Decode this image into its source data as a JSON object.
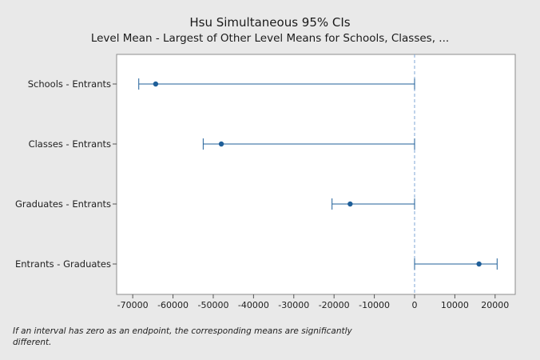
{
  "chart_data": {
    "type": "interval",
    "title": "Hsu Simultaneous 95% CIs",
    "subtitle": "Level Mean - Largest of Other Level Means for Schools, Classes, ...",
    "categories": [
      "Schools - Entrants",
      "Classes - Entrants",
      "Graduates - Entrants",
      "Entrants - Graduates"
    ],
    "intervals": [
      {
        "label": "Schools - Entrants",
        "lower": -68500,
        "estimate": -64300,
        "upper": 0
      },
      {
        "label": "Classes - Entrants",
        "lower": -52500,
        "estimate": -48000,
        "upper": 0
      },
      {
        "label": "Graduates - Entrants",
        "lower": -20500,
        "estimate": -16000,
        "upper": 0
      },
      {
        "label": "Entrants - Graduates",
        "lower": 0,
        "estimate": 16000,
        "upper": 20500
      }
    ],
    "xticks": [
      -70000,
      -60000,
      -50000,
      -40000,
      -30000,
      -20000,
      -10000,
      0,
      10000,
      20000
    ],
    "xlim": [
      -74000,
      25000
    ],
    "reference_line": 0,
    "colors": {
      "interval": "#1f5f99",
      "reference": "#7ea6d6",
      "plot_bg": "#ffffff",
      "page_bg": "#e9e9e9"
    }
  },
  "footnote": "If an interval has zero as an endpoint, the corresponding means are significantly different."
}
